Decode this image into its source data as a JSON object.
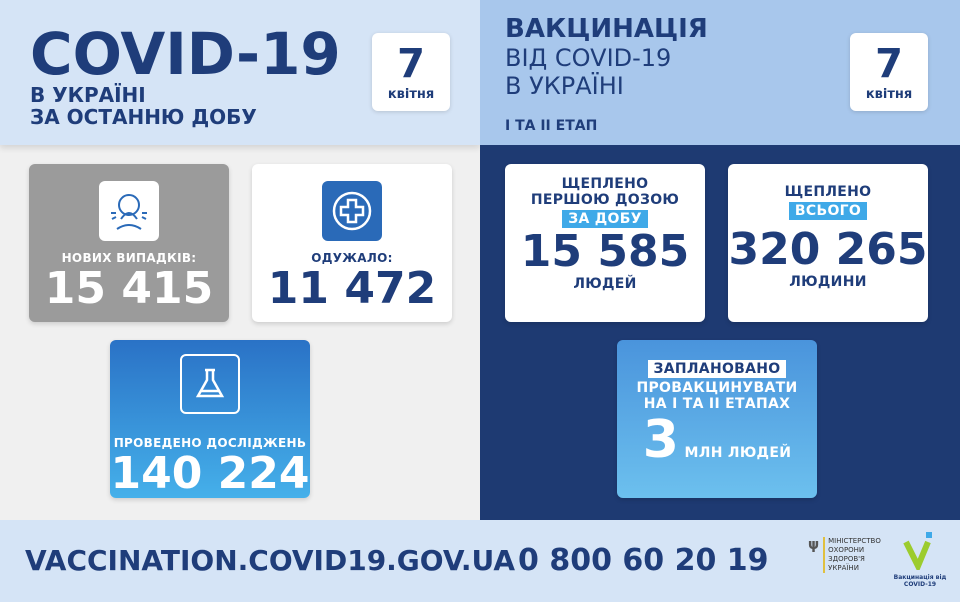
{
  "left": {
    "title": "COVID-19",
    "subtitle1": "В УКРАЇНІ",
    "subtitle2": "ЗА ОСТАННЮ ДОБУ",
    "date_day": "7",
    "date_month": "квітня",
    "cases": {
      "label": "НОВИХ ВИПАДКІВ:",
      "value": "15 415",
      "icon": "sneeze-icon"
    },
    "recovered": {
      "label": "ОДУЖАЛО:",
      "value": "11 472",
      "icon": "medical-cross-icon"
    },
    "tests": {
      "label": "ПРОВЕДЕНО ДОСЛІДЖЕНЬ",
      "value": "140 224",
      "icon": "flask-icon"
    }
  },
  "right": {
    "title1": "ВАКЦИНАЦІЯ",
    "title2": "ВІД COVID-19",
    "title3": "В УКРАЇНІ",
    "stage": "І ТА ІІ ЕТАП",
    "date_day": "7",
    "date_month": "квітня",
    "daily": {
      "line1": "ЩЕПЛЕНО",
      "line2": "ПЕРШОЮ ДОЗОЮ",
      "highlight": "ЗА ДОБУ",
      "value": "15 585",
      "unit": "ЛЮДЕЙ"
    },
    "total": {
      "line1": "ЩЕПЛЕНО",
      "highlight": "ВСЬОГО",
      "value": "320 265",
      "unit": "ЛЮДИНИ"
    },
    "planned": {
      "highlight": "ЗАПЛАНОВАНО",
      "line2": "ПРОВАКЦИНУВАТИ",
      "line3": "НА І ТА ІІ ЕТАПАХ",
      "value": "3",
      "unit": "МЛН ЛЮДЕЙ"
    }
  },
  "footer": {
    "website": "VACCINATION.COVID19.GOV.UA",
    "phone": "0 800 60 20 19",
    "ministry": [
      "МІНІСТЕРСТВО",
      "ОХОРОНИ",
      "ЗДОРОВ'Я",
      "УКРАЇНИ"
    ],
    "vacc_logo": "Вакцинація від COVID-19"
  },
  "colors": {
    "navy": "#1f3d7a",
    "light_blue": "#d5e4f6",
    "accent": "#3fa9e8",
    "gray_card": "#9b9b9b",
    "lime": "#9ccc2e"
  }
}
